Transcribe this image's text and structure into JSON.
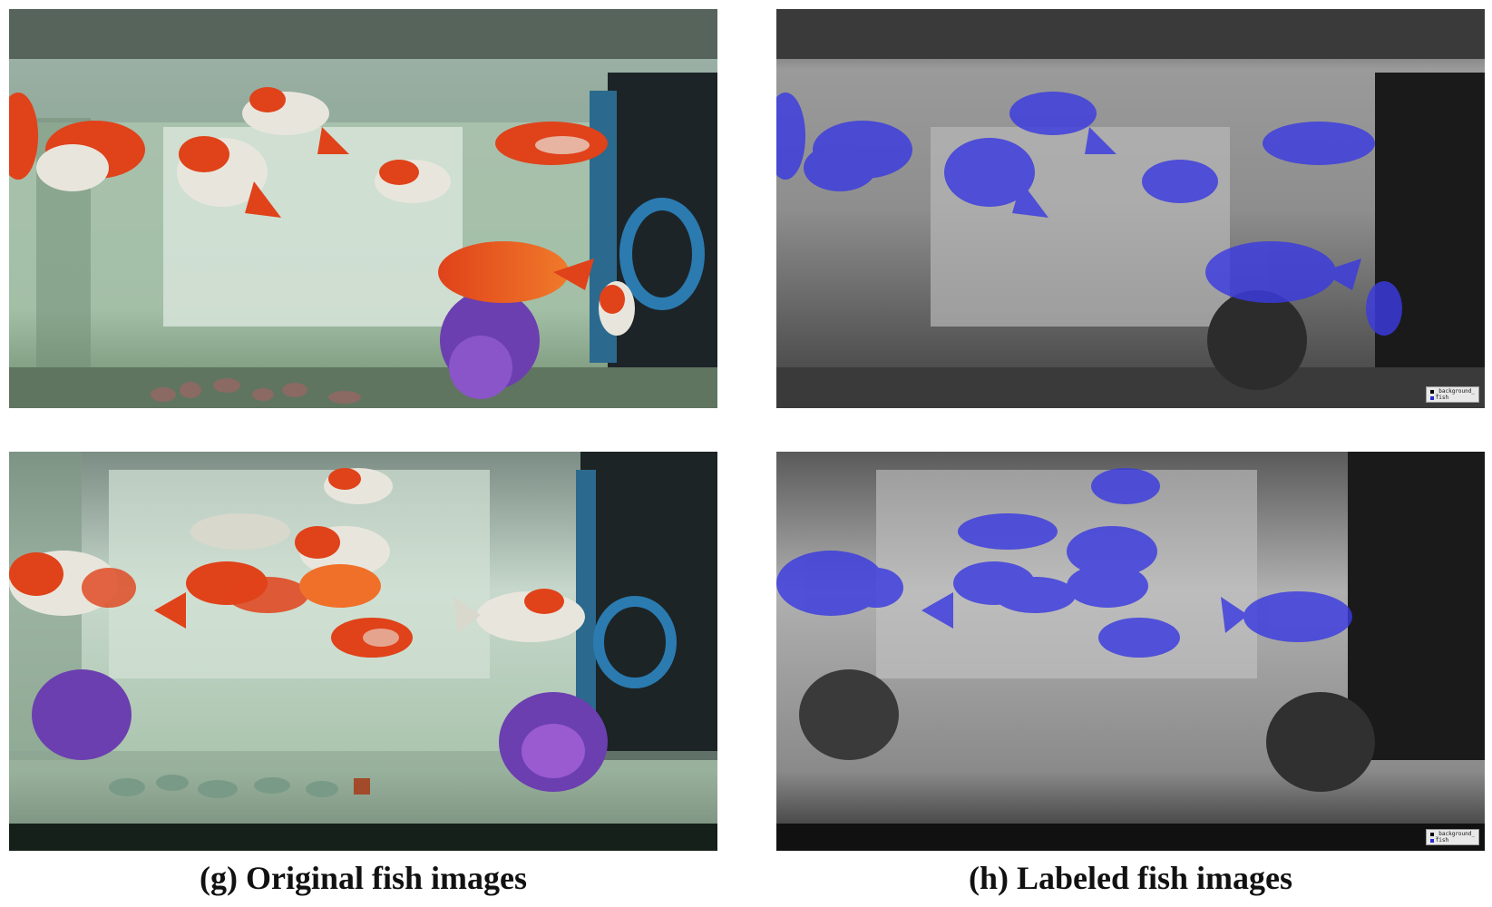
{
  "captions": {
    "left": "(g) Original fish images",
    "right": "(h) Labeled fish images"
  },
  "legend": {
    "items": [
      {
        "label": "_background_",
        "color": "#000000"
      },
      {
        "label": "fish",
        "color": "#2a2ad0"
      }
    ]
  },
  "colors": {
    "water": "#9fb8a4",
    "fish_orange": "#e0421a",
    "fish_white": "#e8e6dc",
    "mask_blue": "#3a3ae0",
    "plant_purple": "#6b3fb0"
  }
}
